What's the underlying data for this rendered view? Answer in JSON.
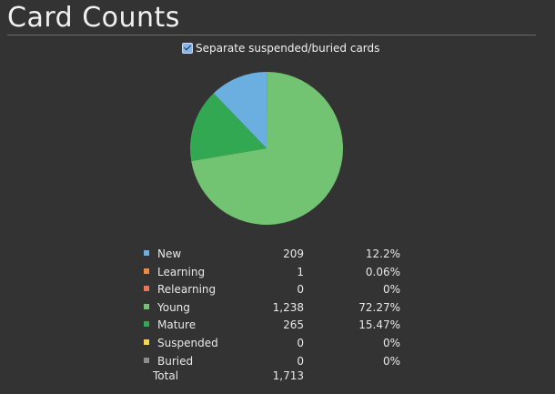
{
  "title": "Card Counts",
  "toggle": {
    "label": "Separate suspended/buried cards",
    "checked": true
  },
  "chart_data": {
    "type": "pie",
    "slices": [
      {
        "label": "New",
        "value": 209,
        "percent": "12.2%",
        "color": "#6bafe0"
      },
      {
        "label": "Learning",
        "value": 1,
        "percent": "0.06%",
        "color": "#f0893e"
      },
      {
        "label": "Relearning",
        "value": 0,
        "percent": "0%",
        "color": "#ee7455"
      },
      {
        "label": "Young",
        "value": 1238,
        "percent": "72.27%",
        "color": "#72c472"
      },
      {
        "label": "Mature",
        "value": 265,
        "percent": "15.47%",
        "color": "#33a853"
      },
      {
        "label": "Suspended",
        "value": 0,
        "percent": "0%",
        "color": "#f5d84a"
      },
      {
        "label": "Buried",
        "value": 0,
        "percent": "0%",
        "color": "#8c8c8c"
      }
    ],
    "pie_order": [
      "Learning",
      "Young",
      "Mature",
      "New"
    ],
    "total_label": "Total",
    "total_value": "1,713"
  }
}
